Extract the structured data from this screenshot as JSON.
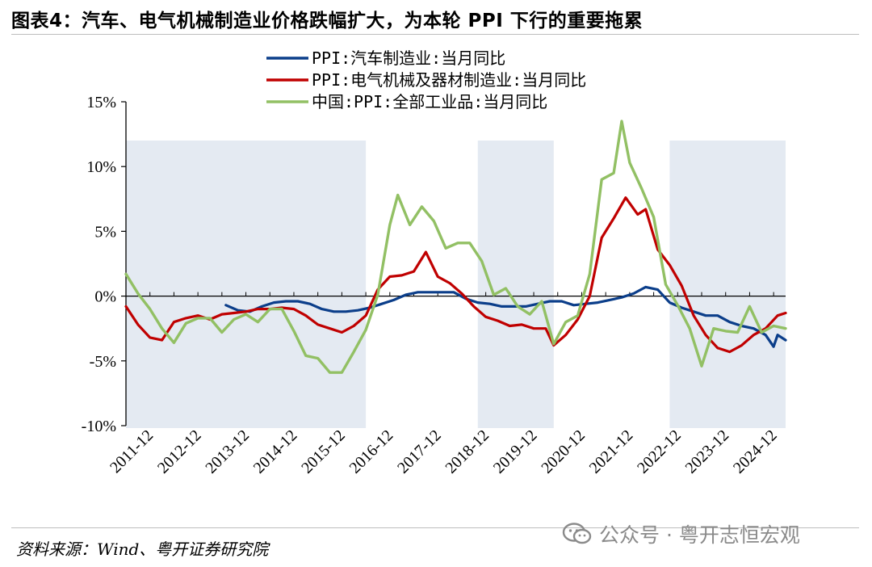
{
  "header": {
    "title": "图表4：汽车、电气机械制造业价格跌幅扩大，为本轮 PPI 下行的重要拖累"
  },
  "footer": {
    "source": "资料来源：Wind、粤开证券研究院",
    "watermark": "公众号 · 粤开志恒宏观",
    "watermark_icon": "wechat-icon"
  },
  "chart_data": {
    "type": "line",
    "title": "",
    "xlabel": "",
    "ylabel": "",
    "ylim": [
      -10,
      15
    ],
    "y_ticks": [
      15,
      10,
      5,
      0,
      -5,
      -10
    ],
    "y_tick_labels": [
      "15%",
      "10%",
      "5%",
      "0%",
      "-5%",
      "-10%"
    ],
    "x_range": [
      "2011-06",
      "2025-03"
    ],
    "x_tick_labels": [
      "2011-12",
      "2012-12",
      "2013-12",
      "2014-12",
      "2015-12",
      "2016-12",
      "2017-12",
      "2018-12",
      "2019-12",
      "2020-12",
      "2021-12",
      "2022-12",
      "2023-12",
      "2024-12"
    ],
    "grid": false,
    "legend_position": "top-center",
    "shaded_periods": [
      [
        "2011-06",
        "2016-06"
      ],
      [
        "2018-10",
        "2020-05"
      ],
      [
        "2022-10",
        "2025-03"
      ]
    ],
    "shade_color": "#e4eaf2",
    "series": [
      {
        "name": "PPI:汽车制造业:当月同比",
        "color": "#0b3e8a",
        "points": [
          [
            "2013-07",
            -0.7
          ],
          [
            "2013-10",
            -1.1
          ],
          [
            "2014-01",
            -1.2
          ],
          [
            "2014-04",
            -0.8
          ],
          [
            "2014-07",
            -0.5
          ],
          [
            "2014-10",
            -0.4
          ],
          [
            "2015-01",
            -0.4
          ],
          [
            "2015-04",
            -0.6
          ],
          [
            "2015-07",
            -1.0
          ],
          [
            "2015-10",
            -1.2
          ],
          [
            "2016-01",
            -1.2
          ],
          [
            "2016-04",
            -1.1
          ],
          [
            "2016-07",
            -0.9
          ],
          [
            "2016-10",
            -0.6
          ],
          [
            "2017-01",
            -0.3
          ],
          [
            "2017-04",
            0.1
          ],
          [
            "2017-07",
            0.3
          ],
          [
            "2017-10",
            0.3
          ],
          [
            "2018-01",
            0.3
          ],
          [
            "2018-04",
            0.3
          ],
          [
            "2018-07",
            -0.2
          ],
          [
            "2018-10",
            -0.5
          ],
          [
            "2019-01",
            -0.6
          ],
          [
            "2019-04",
            -0.8
          ],
          [
            "2019-07",
            -0.8
          ],
          [
            "2019-10",
            -0.8
          ],
          [
            "2020-01",
            -0.6
          ],
          [
            "2020-04",
            -0.4
          ],
          [
            "2020-07",
            -0.4
          ],
          [
            "2020-10",
            -0.7
          ],
          [
            "2021-01",
            -0.6
          ],
          [
            "2021-04",
            -0.5
          ],
          [
            "2021-07",
            -0.3
          ],
          [
            "2021-10",
            -0.1
          ],
          [
            "2022-01",
            0.2
          ],
          [
            "2022-04",
            0.7
          ],
          [
            "2022-07",
            0.5
          ],
          [
            "2022-10",
            -0.5
          ],
          [
            "2023-01",
            -0.9
          ],
          [
            "2023-04",
            -1.2
          ],
          [
            "2023-07",
            -1.5
          ],
          [
            "2023-10",
            -1.5
          ],
          [
            "2024-01",
            -2.0
          ],
          [
            "2024-04",
            -2.3
          ],
          [
            "2024-07",
            -2.5
          ],
          [
            "2024-10",
            -3.0
          ],
          [
            "2024-12",
            -3.9
          ],
          [
            "2025-01",
            -3.0
          ],
          [
            "2025-03",
            -3.4
          ]
        ]
      },
      {
        "name": "PPI:电气机械及器材制造业:当月同比",
        "color": "#c00000",
        "points": [
          [
            "2011-06",
            -0.8
          ],
          [
            "2011-09",
            -2.2
          ],
          [
            "2011-12",
            -3.2
          ],
          [
            "2012-03",
            -3.4
          ],
          [
            "2012-06",
            -2.0
          ],
          [
            "2012-09",
            -1.7
          ],
          [
            "2012-12",
            -1.5
          ],
          [
            "2013-03",
            -1.8
          ],
          [
            "2013-06",
            -1.4
          ],
          [
            "2013-09",
            -1.3
          ],
          [
            "2013-12",
            -1.2
          ],
          [
            "2014-03",
            -1.0
          ],
          [
            "2014-06",
            -1.0
          ],
          [
            "2014-09",
            -0.9
          ],
          [
            "2014-12",
            -1.0
          ],
          [
            "2015-03",
            -1.5
          ],
          [
            "2015-06",
            -2.2
          ],
          [
            "2015-09",
            -2.5
          ],
          [
            "2015-12",
            -2.8
          ],
          [
            "2016-03",
            -2.3
          ],
          [
            "2016-06",
            -1.5
          ],
          [
            "2016-09",
            0.5
          ],
          [
            "2016-12",
            1.5
          ],
          [
            "2017-03",
            1.6
          ],
          [
            "2017-06",
            1.9
          ],
          [
            "2017-09",
            3.4
          ],
          [
            "2017-12",
            1.5
          ],
          [
            "2018-03",
            1.0
          ],
          [
            "2018-06",
            0.2
          ],
          [
            "2018-09",
            -0.8
          ],
          [
            "2018-12",
            -1.6
          ],
          [
            "2019-03",
            -1.9
          ],
          [
            "2019-06",
            -2.3
          ],
          [
            "2019-09",
            -2.2
          ],
          [
            "2019-12",
            -2.5
          ],
          [
            "2020-03",
            -2.5
          ],
          [
            "2020-05",
            -3.8
          ],
          [
            "2020-08",
            -3.0
          ],
          [
            "2020-11",
            -1.8
          ],
          [
            "2021-02",
            0.0
          ],
          [
            "2021-05",
            4.5
          ],
          [
            "2021-08",
            6.0
          ],
          [
            "2021-11",
            7.6
          ],
          [
            "2022-02",
            6.3
          ],
          [
            "2022-04",
            6.7
          ],
          [
            "2022-07",
            3.6
          ],
          [
            "2022-10",
            2.4
          ],
          [
            "2023-01",
            0.8
          ],
          [
            "2023-04",
            -1.5
          ],
          [
            "2023-07",
            -3.0
          ],
          [
            "2023-10",
            -4.0
          ],
          [
            "2024-01",
            -4.3
          ],
          [
            "2024-04",
            -3.8
          ],
          [
            "2024-07",
            -3.0
          ],
          [
            "2024-10",
            -2.5
          ],
          [
            "2025-01",
            -1.5
          ],
          [
            "2025-03",
            -1.3
          ]
        ]
      },
      {
        "name": "中国:PPI:全部工业品:当月同比",
        "color": "#92c064",
        "points": [
          [
            "2011-06",
            1.7
          ],
          [
            "2011-09",
            0.2
          ],
          [
            "2011-12",
            -1.0
          ],
          [
            "2012-03",
            -2.5
          ],
          [
            "2012-06",
            -3.6
          ],
          [
            "2012-09",
            -2.1
          ],
          [
            "2012-12",
            -1.7
          ],
          [
            "2013-03",
            -1.7
          ],
          [
            "2013-06",
            -2.8
          ],
          [
            "2013-09",
            -1.8
          ],
          [
            "2013-12",
            -1.4
          ],
          [
            "2014-03",
            -2.0
          ],
          [
            "2014-06",
            -1.0
          ],
          [
            "2014-09",
            -1.0
          ],
          [
            "2014-12",
            -2.7
          ],
          [
            "2015-03",
            -4.6
          ],
          [
            "2015-06",
            -4.8
          ],
          [
            "2015-09",
            -5.9
          ],
          [
            "2015-12",
            -5.9
          ],
          [
            "2016-03",
            -4.3
          ],
          [
            "2016-06",
            -2.6
          ],
          [
            "2016-09",
            0.1
          ],
          [
            "2016-12",
            5.5
          ],
          [
            "2017-02",
            7.8
          ],
          [
            "2017-05",
            5.5
          ],
          [
            "2017-08",
            6.9
          ],
          [
            "2017-11",
            5.8
          ],
          [
            "2018-02",
            3.7
          ],
          [
            "2018-05",
            4.1
          ],
          [
            "2018-08",
            4.1
          ],
          [
            "2018-11",
            2.7
          ],
          [
            "2019-02",
            0.1
          ],
          [
            "2019-05",
            0.6
          ],
          [
            "2019-08",
            -0.8
          ],
          [
            "2019-11",
            -1.4
          ],
          [
            "2020-02",
            -0.4
          ],
          [
            "2020-05",
            -3.7
          ],
          [
            "2020-08",
            -2.0
          ],
          [
            "2020-11",
            -1.5
          ],
          [
            "2021-02",
            1.7
          ],
          [
            "2021-05",
            9.0
          ],
          [
            "2021-08",
            9.5
          ],
          [
            "2021-10",
            13.5
          ],
          [
            "2021-12",
            10.3
          ],
          [
            "2022-03",
            8.3
          ],
          [
            "2022-06",
            6.1
          ],
          [
            "2022-09",
            0.9
          ],
          [
            "2022-12",
            -0.7
          ],
          [
            "2023-03",
            -2.5
          ],
          [
            "2023-06",
            -5.4
          ],
          [
            "2023-09",
            -2.5
          ],
          [
            "2023-12",
            -2.7
          ],
          [
            "2024-03",
            -2.8
          ],
          [
            "2024-06",
            -0.8
          ],
          [
            "2024-09",
            -2.8
          ],
          [
            "2024-12",
            -2.3
          ],
          [
            "2025-03",
            -2.5
          ]
        ]
      }
    ]
  }
}
